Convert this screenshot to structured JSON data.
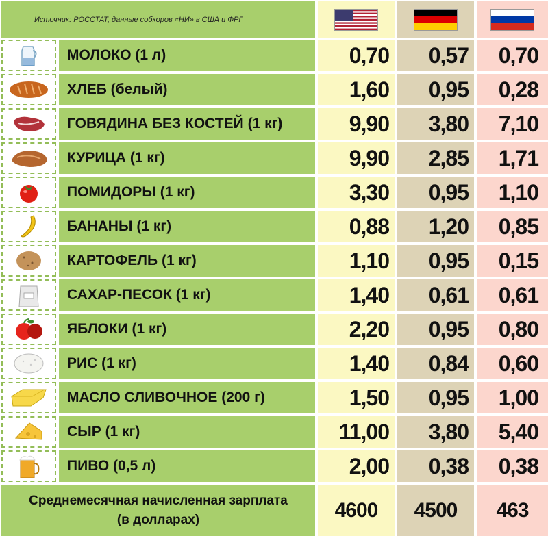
{
  "header": {
    "source_note": "Источник: РОССТАТ, данные собкоров «НИ» в США и ФРГ",
    "flags": [
      "us-flag-icon",
      "germany-flag-icon",
      "russia-flag-icon"
    ]
  },
  "colors": {
    "label_bg": "#a8cf6c",
    "us_column_bg": "#fbf8c2",
    "germany_column_bg": "#ddd3b6",
    "russia_column_bg": "#fcd6cd"
  },
  "chart_data": {
    "type": "table",
    "columns": [
      "США",
      "ФРГ",
      "Россия"
    ],
    "rows": [
      {
        "icon": "milk-jug-icon",
        "label": "МОЛОКО (1 л)",
        "values": [
          "0,70",
          "0,57",
          "0,70"
        ]
      },
      {
        "icon": "bread-icon",
        "label": "ХЛЕБ (белый)",
        "values": [
          "1,60",
          "0,95",
          "0,28"
        ]
      },
      {
        "icon": "beef-icon",
        "label": "ГОВЯДИНА БЕЗ КОСТЕЙ (1 кг)",
        "values": [
          "9,90",
          "3,80",
          "7,10"
        ]
      },
      {
        "icon": "chicken-icon",
        "label": "КУРИЦА (1 кг)",
        "values": [
          "9,90",
          "2,85",
          "1,71"
        ]
      },
      {
        "icon": "tomato-icon",
        "label": "ПОМИДОРЫ (1 кг)",
        "values": [
          "3,30",
          "0,95",
          "1,10"
        ]
      },
      {
        "icon": "banana-icon",
        "label": "БАНАНЫ (1 кг)",
        "values": [
          "0,88",
          "1,20",
          "0,85"
        ]
      },
      {
        "icon": "potato-icon",
        "label": "КАРТОФЕЛЬ (1 кг)",
        "values": [
          "1,10",
          "0,95",
          "0,15"
        ]
      },
      {
        "icon": "sugar-bag-icon",
        "label": "САХАР-ПЕСОК (1 кг)",
        "values": [
          "1,40",
          "0,61",
          "0,61"
        ]
      },
      {
        "icon": "apple-icon",
        "label": "ЯБЛОКИ (1 кг)",
        "values": [
          "2,20",
          "0,95",
          "0,80"
        ]
      },
      {
        "icon": "rice-bowl-icon",
        "label": "РИС (1 кг)",
        "values": [
          "1,40",
          "0,84",
          "0,60"
        ]
      },
      {
        "icon": "butter-icon",
        "label": "МАСЛО СЛИВОЧНОЕ (200 г)",
        "values": [
          "1,50",
          "0,95",
          "1,00"
        ]
      },
      {
        "icon": "cheese-icon",
        "label": "СЫР (1 кг)",
        "values": [
          "11,00",
          "3,80",
          "5,40"
        ]
      },
      {
        "icon": "beer-mug-icon",
        "label": "ПИВО (0,5 л)",
        "values": [
          "2,00",
          "0,38",
          "0,38"
        ]
      }
    ],
    "footer": {
      "label_line1": "Среднемесячная начисленная зарплата",
      "label_line2": "(в долларах)",
      "values": [
        "4600",
        "4500",
        "463"
      ]
    }
  }
}
